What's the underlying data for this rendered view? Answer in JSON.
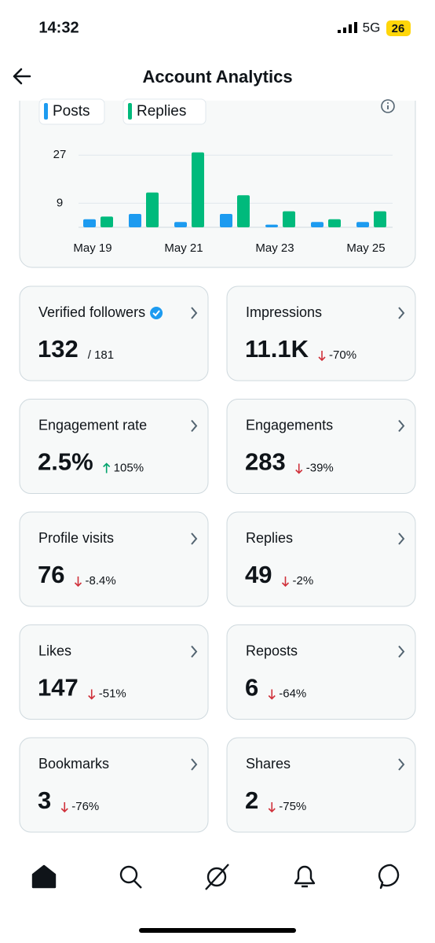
{
  "status_bar": {
    "time": "14:32",
    "network": "5G",
    "battery": "26"
  },
  "header": {
    "title": "Account Analytics"
  },
  "chart_data": {
    "type": "bar",
    "categories": [
      "May 19",
      null,
      "May 21",
      null,
      "May 23",
      null,
      "May 25"
    ],
    "series": [
      {
        "name": "Posts",
        "color": "#1d9bf0",
        "values": [
          3,
          5,
          2,
          5,
          1,
          2,
          2
        ]
      },
      {
        "name": "Replies",
        "color": "#00ba7c",
        "values": [
          4,
          13,
          28,
          12,
          6,
          3,
          6
        ]
      }
    ],
    "ylim": [
      0,
      30
    ],
    "yticks": [
      9,
      27
    ],
    "grid": true
  },
  "metrics": [
    {
      "title": "Verified followers",
      "verified": true,
      "value": "132",
      "total": "/ 181"
    },
    {
      "title": "Impressions",
      "value": "11.1K",
      "change": "-70%",
      "trend": "down"
    },
    {
      "title": "Engagement rate",
      "value": "2.5%",
      "change": "105%",
      "trend": "up"
    },
    {
      "title": "Engagements",
      "value": "283",
      "change": "-39%",
      "trend": "down"
    },
    {
      "title": "Profile visits",
      "value": "76",
      "change": "-8.4%",
      "trend": "down"
    },
    {
      "title": "Replies",
      "value": "49",
      "change": "-2%",
      "trend": "down"
    },
    {
      "title": "Likes",
      "value": "147",
      "change": "-51%",
      "trend": "down"
    },
    {
      "title": "Reposts",
      "value": "6",
      "change": "-64%",
      "trend": "down"
    },
    {
      "title": "Bookmarks",
      "value": "3",
      "change": "-76%",
      "trend": "down"
    },
    {
      "title": "Shares",
      "value": "2",
      "change": "-75%",
      "trend": "down"
    }
  ]
}
